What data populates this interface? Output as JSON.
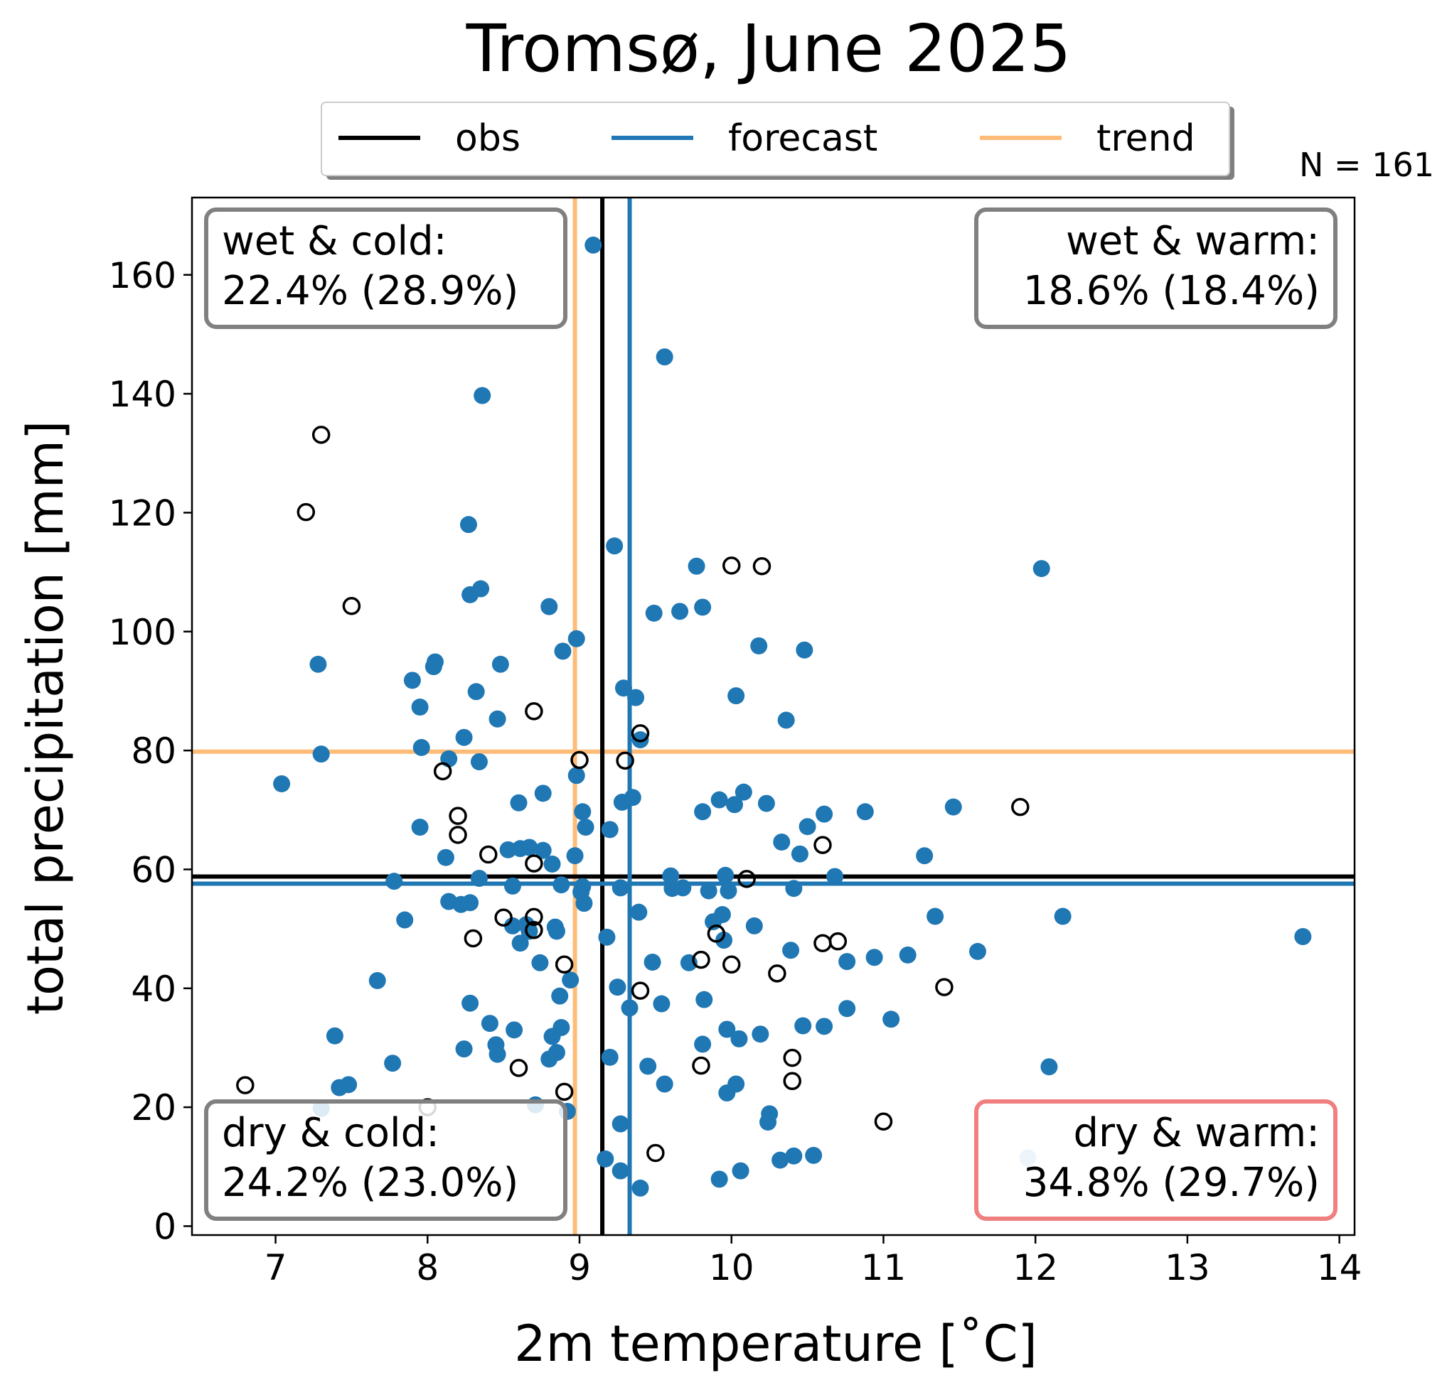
{
  "chart_data": {
    "type": "scatter",
    "title": "Tromsø, June 2025",
    "xlabel": "2m temperature [˚C]",
    "ylabel": "total precipitation [mm]",
    "xlim": [
      6.45,
      14.1
    ],
    "ylim": [
      -1.5,
      173
    ],
    "xticks": [
      7,
      8,
      9,
      10,
      11,
      12,
      13,
      14
    ],
    "yticks": [
      0,
      20,
      40,
      60,
      80,
      100,
      120,
      140,
      160
    ],
    "xtick_labels": [
      "7",
      "8",
      "9",
      "10",
      "11",
      "12",
      "13",
      "14"
    ],
    "ytick_labels": [
      "0",
      "20",
      "40",
      "60",
      "80",
      "100",
      "120",
      "140",
      "160"
    ],
    "grid": false,
    "legend": {
      "placement": "top-center",
      "entries": [
        {
          "label": "obs",
          "color": "#000000"
        },
        {
          "label": "forecast",
          "color": "#1f77b4"
        },
        {
          "label": "trend",
          "color": "#ffbb78"
        }
      ]
    },
    "n_label": "N = 161",
    "reference_lines": {
      "obs": {
        "x": 9.15,
        "y": 58.8,
        "color": "#000000"
      },
      "forecast": {
        "x": 9.33,
        "y": 57.6,
        "color": "#1f77b4"
      },
      "trend": {
        "x": 8.97,
        "y": 79.8,
        "color": "#ffbb78"
      }
    },
    "quadrants": [
      {
        "label": "wet & cold:",
        "value": "22.4% (28.9%)",
        "position": "top-left",
        "border": "#808080"
      },
      {
        "label": "wet & warm:",
        "value": "18.6% (18.4%)",
        "position": "top-right",
        "border": "#808080"
      },
      {
        "label": "dry & cold:",
        "value": "24.2% (23.0%)",
        "position": "bottom-left",
        "border": "#808080"
      },
      {
        "label": "dry & warm:",
        "value": "34.8% (29.7%)",
        "position": "bottom-right",
        "border": "#f08080"
      }
    ],
    "series": [
      {
        "name": "forecast",
        "style": "filled",
        "color": "#1f77b4",
        "points": [
          [
            9.09,
            165
          ],
          [
            9.56,
            146.2
          ],
          [
            8.36,
            139.7
          ],
          [
            8.27,
            118
          ],
          [
            9.23,
            114.4
          ],
          [
            9.77,
            111
          ],
          [
            12.04,
            110.6
          ],
          [
            8.35,
            107.2
          ],
          [
            8.28,
            106.2
          ],
          [
            8.8,
            104.2
          ],
          [
            9.81,
            104.1
          ],
          [
            9.66,
            103.4
          ],
          [
            9.49,
            103.1
          ],
          [
            8.98,
            98.8
          ],
          [
            10.18,
            97.6
          ],
          [
            10.48,
            96.9
          ],
          [
            8.89,
            96.7
          ],
          [
            8.05,
            94.9
          ],
          [
            8.04,
            94.1
          ],
          [
            7.28,
            94.5
          ],
          [
            8.48,
            94.5
          ],
          [
            7.9,
            91.8
          ],
          [
            9.29,
            90.5
          ],
          [
            8.32,
            89.9
          ],
          [
            9.37,
            88.9
          ],
          [
            10.03,
            89.2
          ],
          [
            7.95,
            87.3
          ],
          [
            8.46,
            85.3
          ],
          [
            10.36,
            85.1
          ],
          [
            8.24,
            82.2
          ],
          [
            9.4,
            81.8
          ],
          [
            7.96,
            80.5
          ],
          [
            7.3,
            79.4
          ],
          [
            8.14,
            78.6
          ],
          [
            8.34,
            78.1
          ],
          [
            8.98,
            75.8
          ],
          [
            7.04,
            74.4
          ],
          [
            8.76,
            72.8
          ],
          [
            10.08,
            73
          ],
          [
            9.28,
            71.3
          ],
          [
            9.35,
            72.1
          ],
          [
            8.6,
            71.2
          ],
          [
            9.92,
            71.7
          ],
          [
            10.02,
            70.9
          ],
          [
            9.81,
            69.7
          ],
          [
            10.23,
            71.1
          ],
          [
            10.61,
            69.3
          ],
          [
            10.88,
            69.7
          ],
          [
            11.46,
            70.5
          ],
          [
            9.02,
            69.7
          ],
          [
            10.5,
            67.2
          ],
          [
            7.95,
            67.1
          ],
          [
            9.04,
            67.1
          ],
          [
            9.2,
            66.7
          ],
          [
            10.33,
            64.6
          ],
          [
            8.53,
            63.3
          ],
          [
            8.61,
            63.5
          ],
          [
            8.67,
            63.7
          ],
          [
            8.76,
            63.2
          ],
          [
            10.45,
            62.6
          ],
          [
            8.12,
            62
          ],
          [
            8.97,
            62.3
          ],
          [
            11.27,
            62.3
          ],
          [
            8.82,
            60.9
          ],
          [
            9.96,
            59
          ],
          [
            10.68,
            58.8
          ],
          [
            9.6,
            58.9
          ],
          [
            7.78,
            58
          ],
          [
            8.34,
            58.5
          ],
          [
            9.02,
            57.1
          ],
          [
            8.88,
            57.4
          ],
          [
            8.56,
            57.2
          ],
          [
            9.01,
            56.2
          ],
          [
            9.27,
            56.9
          ],
          [
            9.61,
            56.8
          ],
          [
            9.68,
            56.9
          ],
          [
            9.85,
            56.4
          ],
          [
            10.41,
            56.8
          ],
          [
            9.98,
            56.4
          ],
          [
            9.03,
            54.3
          ],
          [
            8.14,
            54.6
          ],
          [
            8.22,
            54.1
          ],
          [
            8.28,
            54.4
          ],
          [
            9.39,
            52.8
          ],
          [
            11.34,
            52.1
          ],
          [
            12.18,
            52.1
          ],
          [
            7.85,
            51.5
          ],
          [
            9.94,
            52.4
          ],
          [
            9.88,
            51.2
          ],
          [
            10.15,
            50.5
          ],
          [
            8.56,
            50.5
          ],
          [
            8.65,
            50.7
          ],
          [
            8.84,
            50.3
          ],
          [
            8.67,
            49.6
          ],
          [
            8.85,
            49.6
          ],
          [
            8.61,
            47.6
          ],
          [
            9.18,
            48.6
          ],
          [
            9.95,
            48.1
          ],
          [
            13.76,
            48.7
          ],
          [
            11.62,
            46.2
          ],
          [
            10.39,
            46.4
          ],
          [
            11.16,
            45.6
          ],
          [
            10.94,
            45.2
          ],
          [
            10.76,
            44.5
          ],
          [
            9.72,
            44.3
          ],
          [
            9.48,
            44.4
          ],
          [
            8.74,
            44.3
          ],
          [
            8.94,
            41.4
          ],
          [
            7.67,
            41.3
          ],
          [
            9.25,
            40.2
          ],
          [
            8.87,
            38.7
          ],
          [
            9.82,
            38.1
          ],
          [
            9.54,
            37.4
          ],
          [
            8.28,
            37.5
          ],
          [
            9.33,
            36.7
          ],
          [
            10.76,
            36.6
          ],
          [
            11.05,
            34.8
          ],
          [
            8.41,
            34.1
          ],
          [
            10.47,
            33.7
          ],
          [
            10.61,
            33.6
          ],
          [
            8.57,
            33
          ],
          [
            8.88,
            33.4
          ],
          [
            9.97,
            33.1
          ],
          [
            7.39,
            32
          ],
          [
            8.82,
            31.9
          ],
          [
            10.19,
            32.3
          ],
          [
            10.05,
            31.5
          ],
          [
            8.45,
            30.5
          ],
          [
            9.81,
            30.6
          ],
          [
            8.24,
            29.8
          ],
          [
            8.46,
            28.9
          ],
          [
            8.8,
            28.1
          ],
          [
            8.85,
            29.2
          ],
          [
            9.2,
            28.4
          ],
          [
            7.77,
            27.4
          ],
          [
            9.45,
            26.9
          ],
          [
            12.09,
            26.8
          ],
          [
            9.56,
            23.9
          ],
          [
            10.03,
            23.9
          ],
          [
            7.42,
            23.3
          ],
          [
            7.48,
            23.8
          ],
          [
            9.97,
            22.4
          ],
          [
            8.71,
            20.4
          ],
          [
            7.3,
            19.8
          ],
          [
            8.92,
            19.3
          ],
          [
            10.24,
            17.5
          ],
          [
            10.25,
            18.9
          ],
          [
            9.27,
            17.2
          ],
          [
            9.17,
            11.3
          ],
          [
            10.32,
            11.1
          ],
          [
            10.41,
            11.8
          ],
          [
            10.54,
            11.9
          ],
          [
            9.27,
            9.3
          ],
          [
            10.06,
            9.3
          ],
          [
            9.92,
            7.9
          ],
          [
            9.4,
            6.4
          ]
        ]
      },
      {
        "name": "obs",
        "style": "open",
        "color": "#000000",
        "points": [
          [
            7.3,
            133.1
          ],
          [
            7.2,
            120.1
          ],
          [
            10.0,
            111.1
          ],
          [
            10.2,
            111.0
          ],
          [
            7.5,
            104.3
          ],
          [
            8.7,
            86.6
          ],
          [
            9.4,
            82.9
          ],
          [
            9.0,
            78.4
          ],
          [
            9.3,
            78.3
          ],
          [
            8.1,
            76.5
          ],
          [
            11.9,
            70.5
          ],
          [
            8.2,
            69.0
          ],
          [
            8.2,
            65.8
          ],
          [
            10.6,
            64.1
          ],
          [
            8.4,
            62.5
          ],
          [
            8.7,
            61.0
          ],
          [
            10.1,
            58.4
          ],
          [
            8.5,
            51.9
          ],
          [
            8.7,
            52.0
          ],
          [
            8.7,
            49.8
          ],
          [
            9.9,
            49.2
          ],
          [
            8.3,
            48.4
          ],
          [
            10.6,
            47.6
          ],
          [
            10.7,
            47.9
          ],
          [
            9.8,
            44.8
          ],
          [
            10.0,
            44.0
          ],
          [
            8.9,
            44.0
          ],
          [
            10.3,
            42.5
          ],
          [
            11.4,
            40.2
          ],
          [
            9.4,
            39.6
          ],
          [
            10.4,
            28.3
          ],
          [
            9.8,
            27.0
          ],
          [
            8.6,
            26.6
          ],
          [
            10.4,
            24.4
          ],
          [
            6.8,
            23.7
          ],
          [
            8.9,
            22.6
          ],
          [
            8.0,
            20.0
          ],
          [
            11.0,
            17.6
          ],
          [
            9.5,
            12.3
          ]
        ]
      },
      {
        "name": "",
        "style": "filled-light",
        "color": "#8fb8da",
        "points": [
          [
            11.95,
            11.5
          ]
        ]
      }
    ]
  }
}
